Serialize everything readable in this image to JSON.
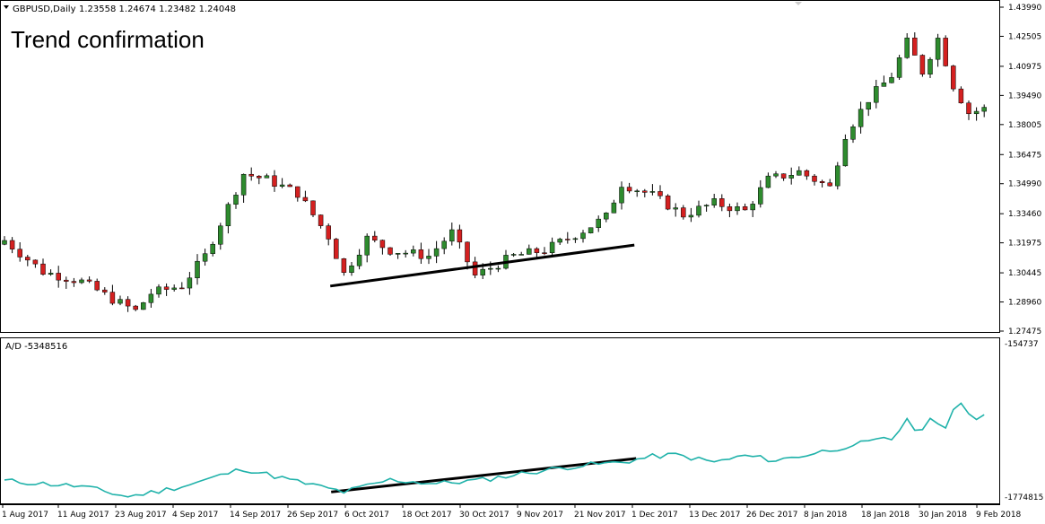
{
  "header": {
    "symbol": "GBPUSD,Daily",
    "ohlc": "1.23558 1.24674 1.23482 1.24048"
  },
  "annotation": "Trend confirmation",
  "indicator": {
    "label": "A/D -5348516",
    "max_label": "-154737",
    "min_label": "-1774815"
  },
  "colors": {
    "bull": "#2e8b2e",
    "bear": "#d42020",
    "ad_line": "#20b2aa",
    "trendline": "#000000"
  },
  "chart_data": {
    "type": "candlestick",
    "price_axis_labels": [
      "1.43990",
      "1.42505",
      "1.40975",
      "1.39490",
      "1.38005",
      "1.36475",
      "1.34990",
      "1.33460",
      "1.31975",
      "1.30445",
      "1.28960",
      "1.27475"
    ],
    "ylim": [
      1.27475,
      1.4399
    ],
    "date_labels": [
      "1 Aug 2017",
      "11 Aug 2017",
      "23 Aug 2017",
      "4 Sep 2017",
      "14 Sep 2017",
      "26 Sep 2017",
      "6 Oct 2017",
      "18 Oct 2017",
      "30 Oct 2017",
      "9 Nov 2017",
      "21 Nov 2017",
      "1 Dec 2017",
      "13 Dec 2017",
      "26 Dec 2017",
      "8 Jan 2018",
      "18 Jan 2018",
      "30 Jan 2018",
      "9 Feb 2018"
    ],
    "price_trendline": {
      "from": [
        42,
        1.3
      ],
      "to": [
        82,
        1.32
      ]
    },
    "ad_trendline": {
      "from": [
        42,
        -1720000
      ],
      "to": [
        82,
        -1360000
      ]
    },
    "ad_ylim": [
      -1774815,
      -154737
    ]
  }
}
